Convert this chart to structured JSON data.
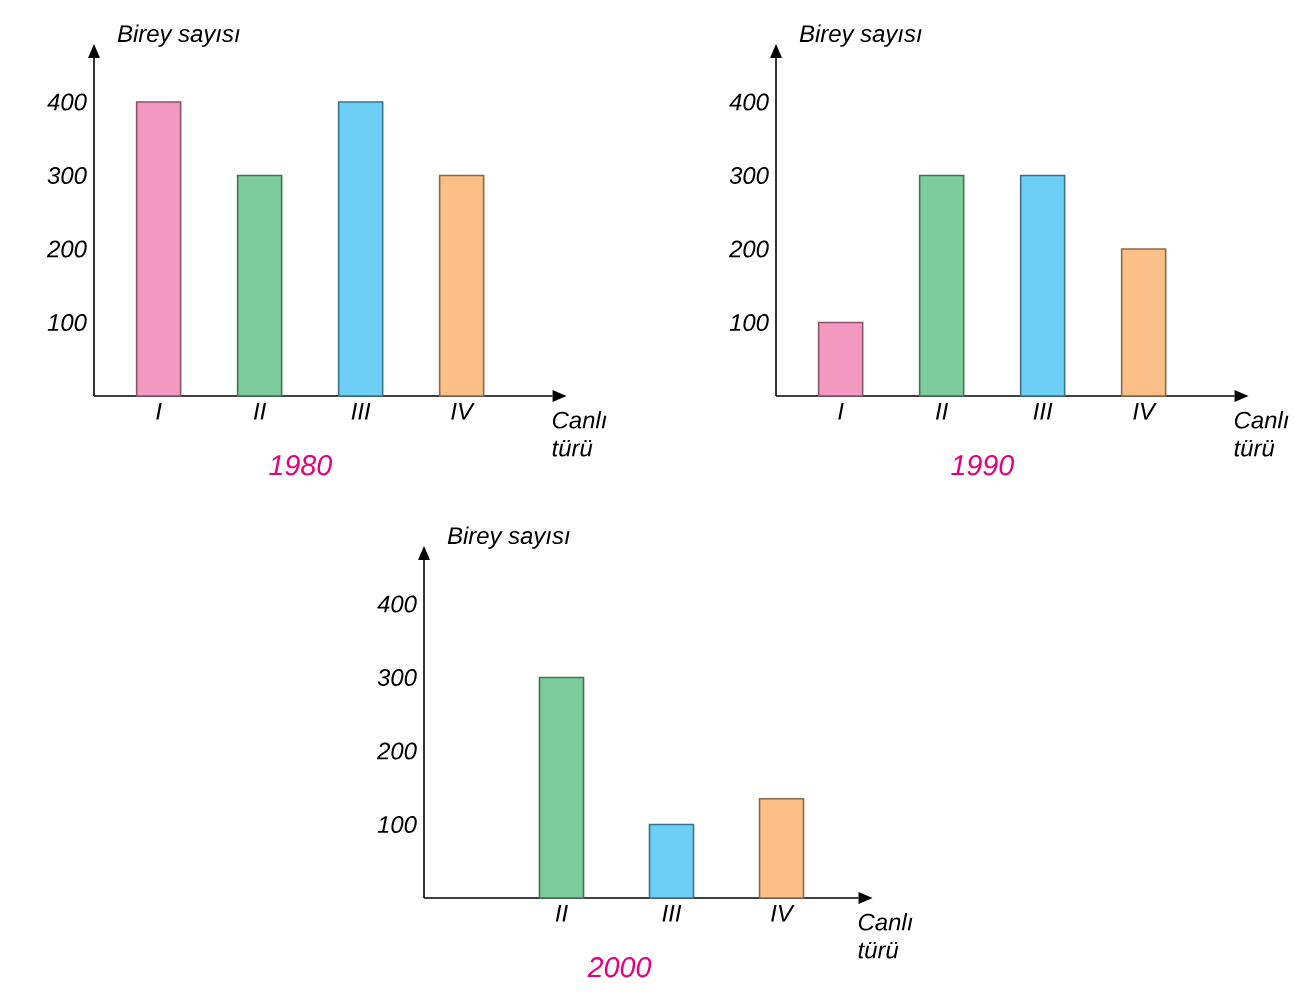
{
  "chart_data": [
    {
      "type": "bar",
      "title": "1980",
      "xlabel": "Canlı türü",
      "ylabel": "Birey sayısı",
      "categories": [
        "I",
        "II",
        "III",
        "IV"
      ],
      "values": [
        400,
        300,
        400,
        300
      ],
      "colors": [
        "#f49ac1",
        "#7dcc9b",
        "#6dcff6",
        "#fbbf87"
      ],
      "ylim": [
        0,
        460
      ],
      "yticks": [
        100,
        200,
        300,
        400
      ]
    },
    {
      "type": "bar",
      "title": "1990",
      "xlabel": "Canlı türü",
      "ylabel": "Birey sayısı",
      "categories": [
        "I",
        "II",
        "III",
        "IV"
      ],
      "values": [
        100,
        300,
        300,
        200
      ],
      "colors": [
        "#f49ac1",
        "#7dcc9b",
        "#6dcff6",
        "#fbbf87"
      ],
      "ylim": [
        0,
        460
      ],
      "yticks": [
        100,
        200,
        300,
        400
      ]
    },
    {
      "type": "bar",
      "title": "2000",
      "xlabel": "Canlı türü",
      "ylabel": "Birey sayısı",
      "categories": [
        "II",
        "III",
        "IV"
      ],
      "values": [
        300,
        100,
        135
      ],
      "colors": [
        "#7dcc9b",
        "#6dcff6",
        "#fbbf87"
      ],
      "ylim": [
        0,
        460
      ],
      "yticks": [
        100,
        200,
        300,
        400
      ]
    }
  ]
}
